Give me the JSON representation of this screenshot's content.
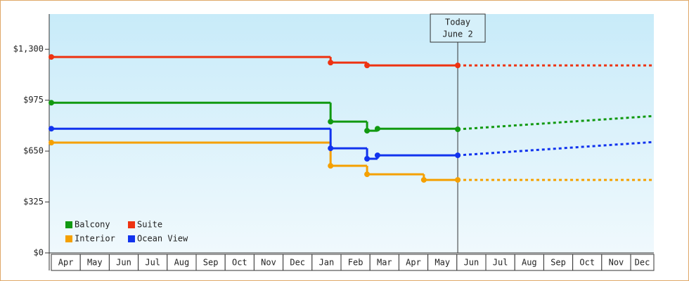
{
  "chart_data": {
    "type": "step",
    "xlim": [
      0,
      20.8
    ],
    "ylim": [
      0,
      1525
    ],
    "yticks": [
      {
        "value": 0,
        "label": "$0"
      },
      {
        "value": 325,
        "label": "$325"
      },
      {
        "value": 650,
        "label": "$650"
      },
      {
        "value": 975,
        "label": "$975"
      },
      {
        "value": 1300,
        "label": "$1,300"
      }
    ],
    "categories": [
      "Apr",
      "May",
      "Jun",
      "Jul",
      "Aug",
      "Sep",
      "Oct",
      "Nov",
      "Dec",
      "Jan",
      "Feb",
      "Mar",
      "Apr",
      "May",
      "Jun",
      "Jul",
      "Aug",
      "Sep",
      "Oct",
      "Nov",
      "Dec"
    ],
    "annotation": {
      "x": 14.03,
      "lines": [
        "Today",
        "June 2"
      ]
    },
    "legend_position": "lower left",
    "series": [
      {
        "name": "Balcony",
        "color": "#119911",
        "x": [
          0,
          9.64,
          10.9,
          11.26,
          14.03
        ],
        "values": [
          959,
          838,
          780,
          793,
          789
        ],
        "projected": {
          "x": [
            14.03,
            20.8
          ],
          "values": [
            789,
            874
          ]
        }
      },
      {
        "name": "Suite",
        "color": "#ee3311",
        "x": [
          0,
          9.64,
          10.9,
          14.03
        ],
        "values": [
          1251,
          1215,
          1197,
          1197
        ],
        "projected": {
          "x": [
            14.03,
            20.8
          ],
          "values": [
            1197,
            1197
          ]
        }
      },
      {
        "name": "Interior",
        "color": "#f5a000",
        "x": [
          0,
          9.64,
          10.9,
          12.86,
          14.03
        ],
        "values": [
          704,
          556,
          502,
          466,
          466
        ],
        "projected": {
          "x": [
            14.03,
            20.8
          ],
          "values": [
            466,
            466
          ]
        }
      },
      {
        "name": "Ocean View",
        "color": "#1133ee",
        "x": [
          0,
          9.64,
          10.9,
          11.26,
          14.03
        ],
        "values": [
          793,
          668,
          601,
          623,
          623
        ],
        "projected": {
          "x": [
            14.03,
            20.8
          ],
          "values": [
            623,
            708
          ]
        }
      }
    ]
  }
}
